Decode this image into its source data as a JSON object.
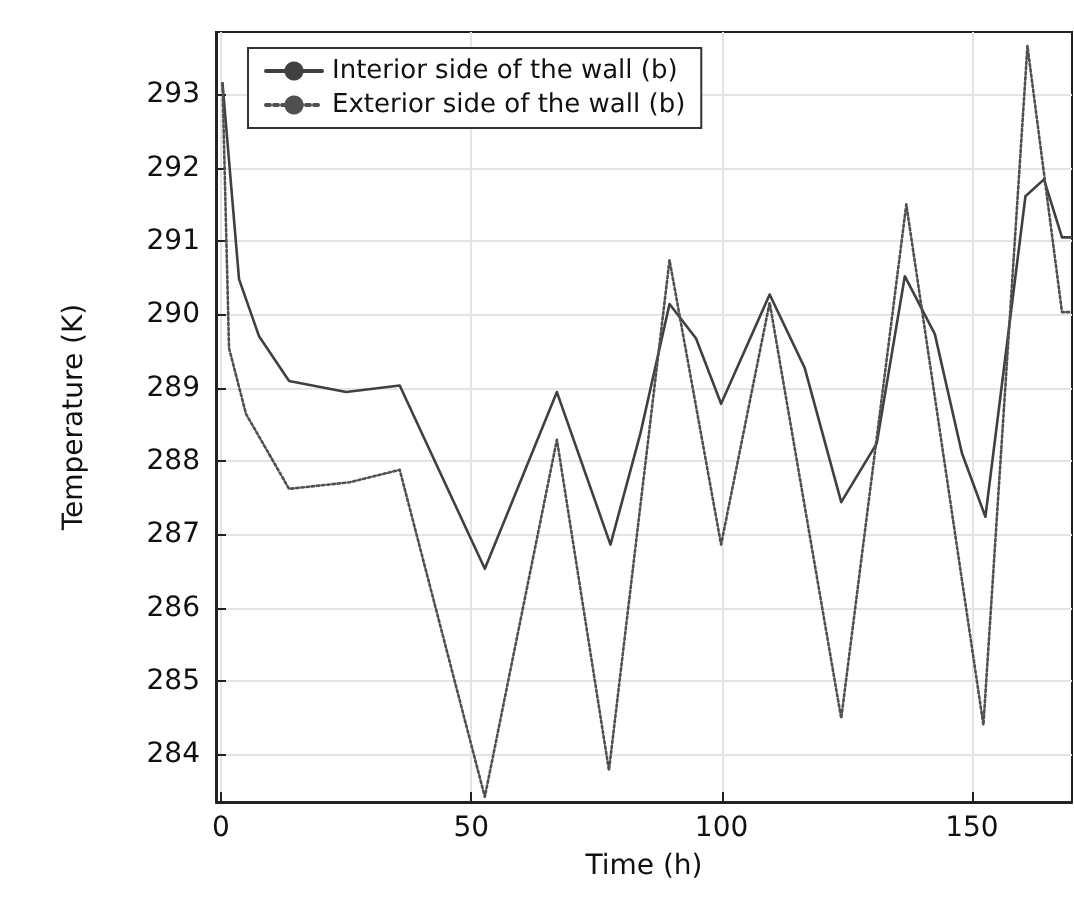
{
  "chart_data": {
    "type": "line",
    "xlabel": "Time (h)",
    "ylabel": "Temperature (K)",
    "xlim": [
      -1,
      170
    ],
    "xticks": [
      0,
      50,
      100,
      150
    ],
    "ylim": [
      283.35,
      293.85
    ],
    "yticks": [
      284,
      285,
      286,
      287,
      288,
      289,
      290,
      291,
      292,
      293
    ],
    "grid": true,
    "legend": "top left",
    "marker": "none",
    "series": [
      {
        "name": "Interior side of the wall (b)",
        "color": "#404040",
        "line_style": "solid",
        "x": [
          0.3,
          3.6,
          7.6,
          13.6,
          25,
          35.7,
          52.7,
          67.1,
          77.8,
          83.8,
          89.6,
          94.9,
          99.9,
          109.6,
          116.6,
          123.9,
          131,
          136.6,
          142.6,
          148,
          152.7,
          160.7,
          164.4,
          168,
          169.8
        ],
        "values": [
          293.15,
          290.48,
          289.7,
          289.09,
          288.94,
          289.03,
          286.53,
          288.94,
          286.86,
          288.38,
          290.14,
          289.67,
          288.78,
          290.27,
          289.27,
          287.44,
          288.24,
          290.52,
          289.73,
          288.11,
          287.24,
          291.61,
          291.84,
          291.05,
          291.05
        ]
      },
      {
        "name": "Exterior side of the wall (b)",
        "color": "#505050",
        "line_style": "dotted",
        "x": [
          0.3,
          1.6,
          5,
          13.6,
          25.7,
          35.7,
          52.7,
          67.1,
          77.5,
          89.6,
          99.9,
          109.6,
          123.9,
          136.9,
          152.3,
          161.1,
          168,
          169.8
        ],
        "values": [
          293.15,
          289.54,
          288.64,
          287.62,
          287.71,
          287.88,
          283.42,
          288.29,
          283.78,
          290.74,
          286.86,
          290.16,
          284.49,
          291.5,
          284.4,
          293.66,
          290.03,
          290.03
        ]
      }
    ]
  }
}
